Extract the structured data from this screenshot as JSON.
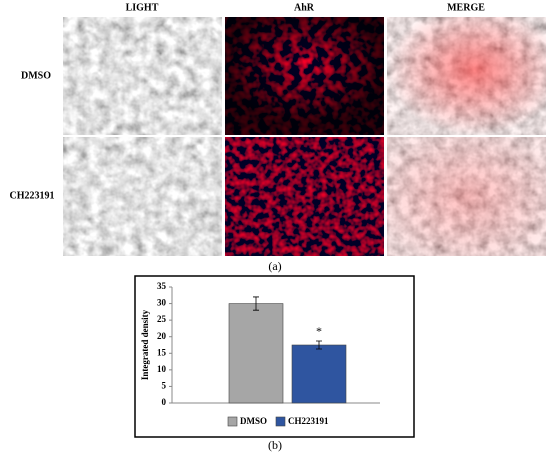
{
  "panel_a": {
    "columns": [
      "LIGHT",
      "AhR",
      "MERGE"
    ],
    "rows": [
      "DMSO",
      "CH223191"
    ],
    "label": "(a)"
  },
  "chart_data": {
    "type": "bar",
    "ylabel": "Integrated density",
    "categories": [
      "DMSO",
      "CH223191"
    ],
    "values": [
      30,
      17.5
    ],
    "errors": [
      2,
      1.2
    ],
    "colors": [
      "#a6a6a6",
      "#2f55a0"
    ],
    "ylim": [
      0,
      35
    ],
    "yticks": [
      0,
      5,
      10,
      15,
      20,
      25,
      30,
      35
    ],
    "annotations": [
      "*"
    ],
    "grid": false,
    "legend": "bottom"
  },
  "panel_b": {
    "label": "(b)"
  }
}
